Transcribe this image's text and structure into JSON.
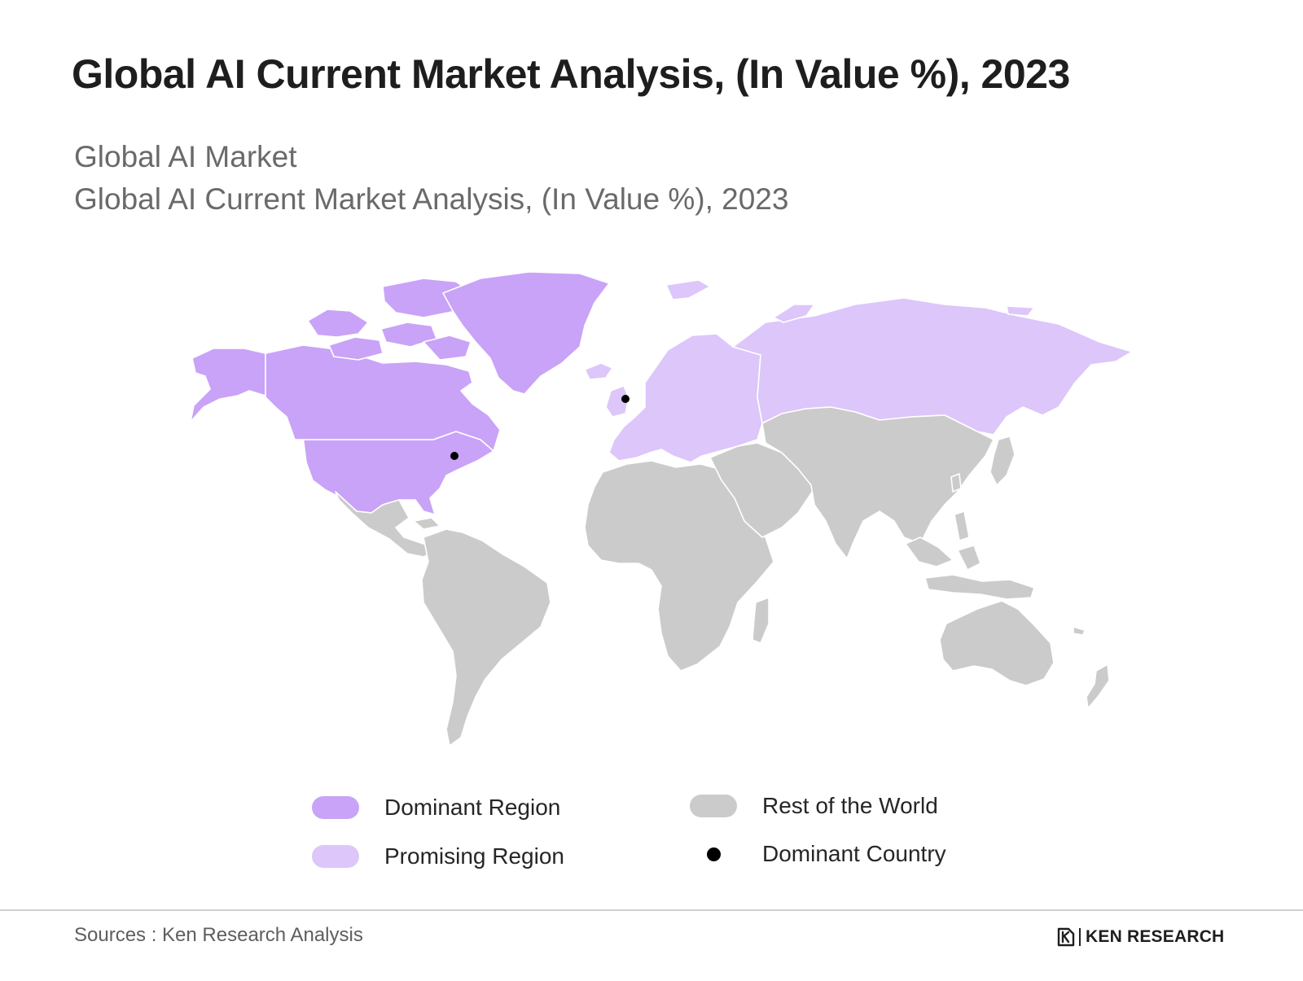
{
  "title": "Global AI Current Market Analysis, (In Value %), 2023",
  "subtitle_line1": "Global AI Market",
  "subtitle_line2": "Global AI Current Market Analysis, (In Value %), 2023",
  "colors": {
    "dominant_region": "#c9a3f7",
    "promising_region": "#dcc6fa",
    "rest_of_world": "#cbcbcb",
    "dominant_country": "#000000",
    "border": "#ffffff"
  },
  "map_data": {
    "regions": [
      {
        "name": "North America",
        "category": "dominant_region"
      },
      {
        "name": "Greenland",
        "category": "dominant_region"
      },
      {
        "name": "Europe",
        "category": "promising_region"
      },
      {
        "name": "Russia",
        "category": "promising_region"
      },
      {
        "name": "Latin America",
        "category": "rest_of_world"
      },
      {
        "name": "Africa",
        "category": "rest_of_world"
      },
      {
        "name": "Middle East",
        "category": "rest_of_world"
      },
      {
        "name": "Asia",
        "category": "rest_of_world"
      },
      {
        "name": "Oceania",
        "category": "rest_of_world"
      }
    ],
    "dominant_country_markers": 2
  },
  "legend": {
    "dominant_region": "Dominant Region",
    "promising_region": "Promising Region",
    "rest_of_world": "Rest of the World",
    "dominant_country": "Dominant Country"
  },
  "source": "Sources : Ken Research Analysis",
  "logo": {
    "text": "KEN RESEARCH",
    "icon": "ken-research-logo-icon"
  }
}
